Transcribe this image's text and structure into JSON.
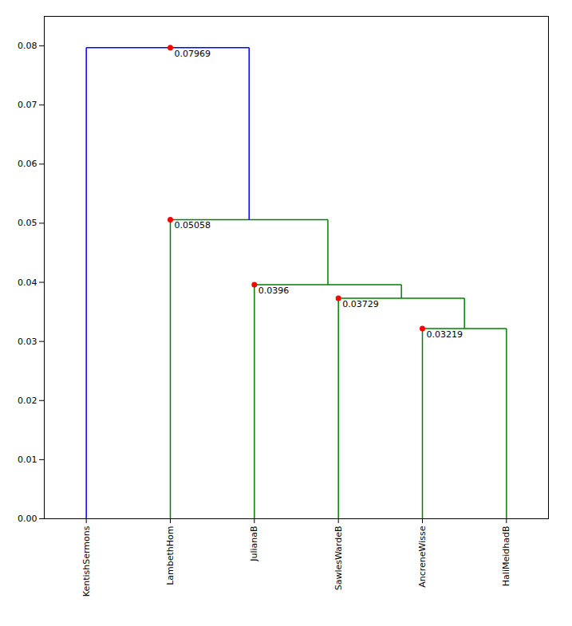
{
  "chart_data": {
    "type": "dendrogram",
    "categories": [
      "KentishSermons",
      "LambethHom",
      "JulianaB",
      "SawlesWardeB",
      "AncreneWisse",
      "HaliMeidhadB"
    ],
    "merges": [
      {
        "left_x": 4.0,
        "right_x": 5.0,
        "height": 0.03219,
        "left_prev_h": 0.0,
        "right_prev_h": 0.0,
        "color": "green",
        "dot_x": 4.0
      },
      {
        "left_x": 3.0,
        "right_x": 4.5,
        "height": 0.03729,
        "left_prev_h": 0.0,
        "right_prev_h": 0.03219,
        "color": "green",
        "dot_x": 3.0
      },
      {
        "left_x": 2.0,
        "right_x": 3.75,
        "height": 0.0396,
        "left_prev_h": 0.0,
        "right_prev_h": 0.03729,
        "color": "green",
        "dot_x": 2.0
      },
      {
        "left_x": 1.0,
        "right_x": 2.875,
        "height": 0.05058,
        "left_prev_h": 0.0,
        "right_prev_h": 0.0396,
        "color": "green",
        "dot_x": 1.0
      },
      {
        "left_x": 0.0,
        "right_x": 1.9375,
        "height": 0.07969,
        "left_prev_h": 0.0,
        "right_prev_h": 0.05058,
        "color": "blue",
        "dot_x": 1.0
      }
    ],
    "dot_color": "red",
    "data_labels": true,
    "xlim": [
      -0.5,
      5.5
    ],
    "ylim": [
      0.0,
      0.085
    ],
    "yticks": [
      {
        "value": 0,
        "label": "0.00"
      },
      0.01,
      0.02,
      0.03,
      0.04,
      0.05,
      0.06,
      0.07,
      0.08
    ]
  }
}
